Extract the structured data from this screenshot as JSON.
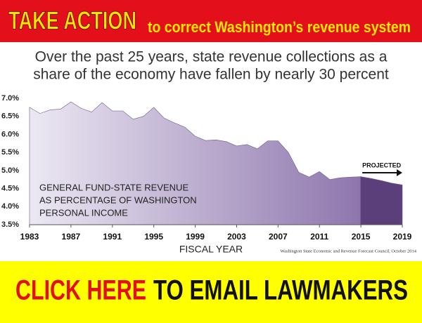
{
  "banner": {
    "headline": "TAKE ACTION",
    "subline": "to correct Washington’s revenue system"
  },
  "chart_data": {
    "type": "area",
    "title": [
      "Over the past 25 years, state revenue collections as a",
      "share of the economy have fallen by nearly 30 percent"
    ],
    "x_label": "FISCAL YEAR",
    "source": "Washington State Economic and Revenue Forecast Council, October 2014",
    "series_label": [
      "GENERAL FUND-STATE REVENUE",
      "AS PERCENTAGE OF WASHINGTON",
      "PERSONAL INCOME"
    ],
    "annotation": "PROJECTED",
    "projected_start": 2015,
    "x": [
      1983,
      1984,
      1985,
      1986,
      1987,
      1988,
      1989,
      1990,
      1991,
      1992,
      1993,
      1994,
      1995,
      1996,
      1997,
      1998,
      1999,
      2000,
      2001,
      2002,
      2003,
      2004,
      2005,
      2006,
      2007,
      2008,
      2009,
      2010,
      2011,
      2012,
      2013,
      2014,
      2015,
      2016,
      2017,
      2018,
      2019
    ],
    "values": [
      6.75,
      6.58,
      6.68,
      6.7,
      6.9,
      6.72,
      6.62,
      6.88,
      6.65,
      6.65,
      6.42,
      6.5,
      6.75,
      6.45,
      6.32,
      6.2,
      5.95,
      5.83,
      5.85,
      5.8,
      5.68,
      5.72,
      5.6,
      5.82,
      5.82,
      5.5,
      4.95,
      4.82,
      4.97,
      4.75,
      4.8,
      4.82,
      4.83,
      4.78,
      4.72,
      4.65,
      4.6
    ],
    "color": "#c9bedc",
    "projected_color": "#5b3f7a",
    "xlim": [
      1983,
      2019
    ],
    "xticks": [
      1983,
      1987,
      1991,
      1995,
      1999,
      2003,
      2007,
      2011,
      2015,
      2019
    ],
    "ylim": [
      3.5,
      7.0
    ],
    "yticks": [
      {
        "value": 3.5,
        "label": "3.5%"
      },
      {
        "value": 4.0,
        "label": "4.0%"
      },
      {
        "value": 4.5,
        "label": "4.5%"
      },
      {
        "value": 5.0,
        "label": "5.0%"
      },
      {
        "value": 5.5,
        "label": "5.5%"
      },
      {
        "value": 6.0,
        "label": "6.0%"
      },
      {
        "value": 6.5,
        "label": "6.5%"
      },
      {
        "value": 7.0,
        "label": "7.0%"
      }
    ],
    "grid": false
  },
  "button": {
    "highlight": "CLICK HERE",
    "text": "TO EMAIL LAWMAKERS"
  }
}
